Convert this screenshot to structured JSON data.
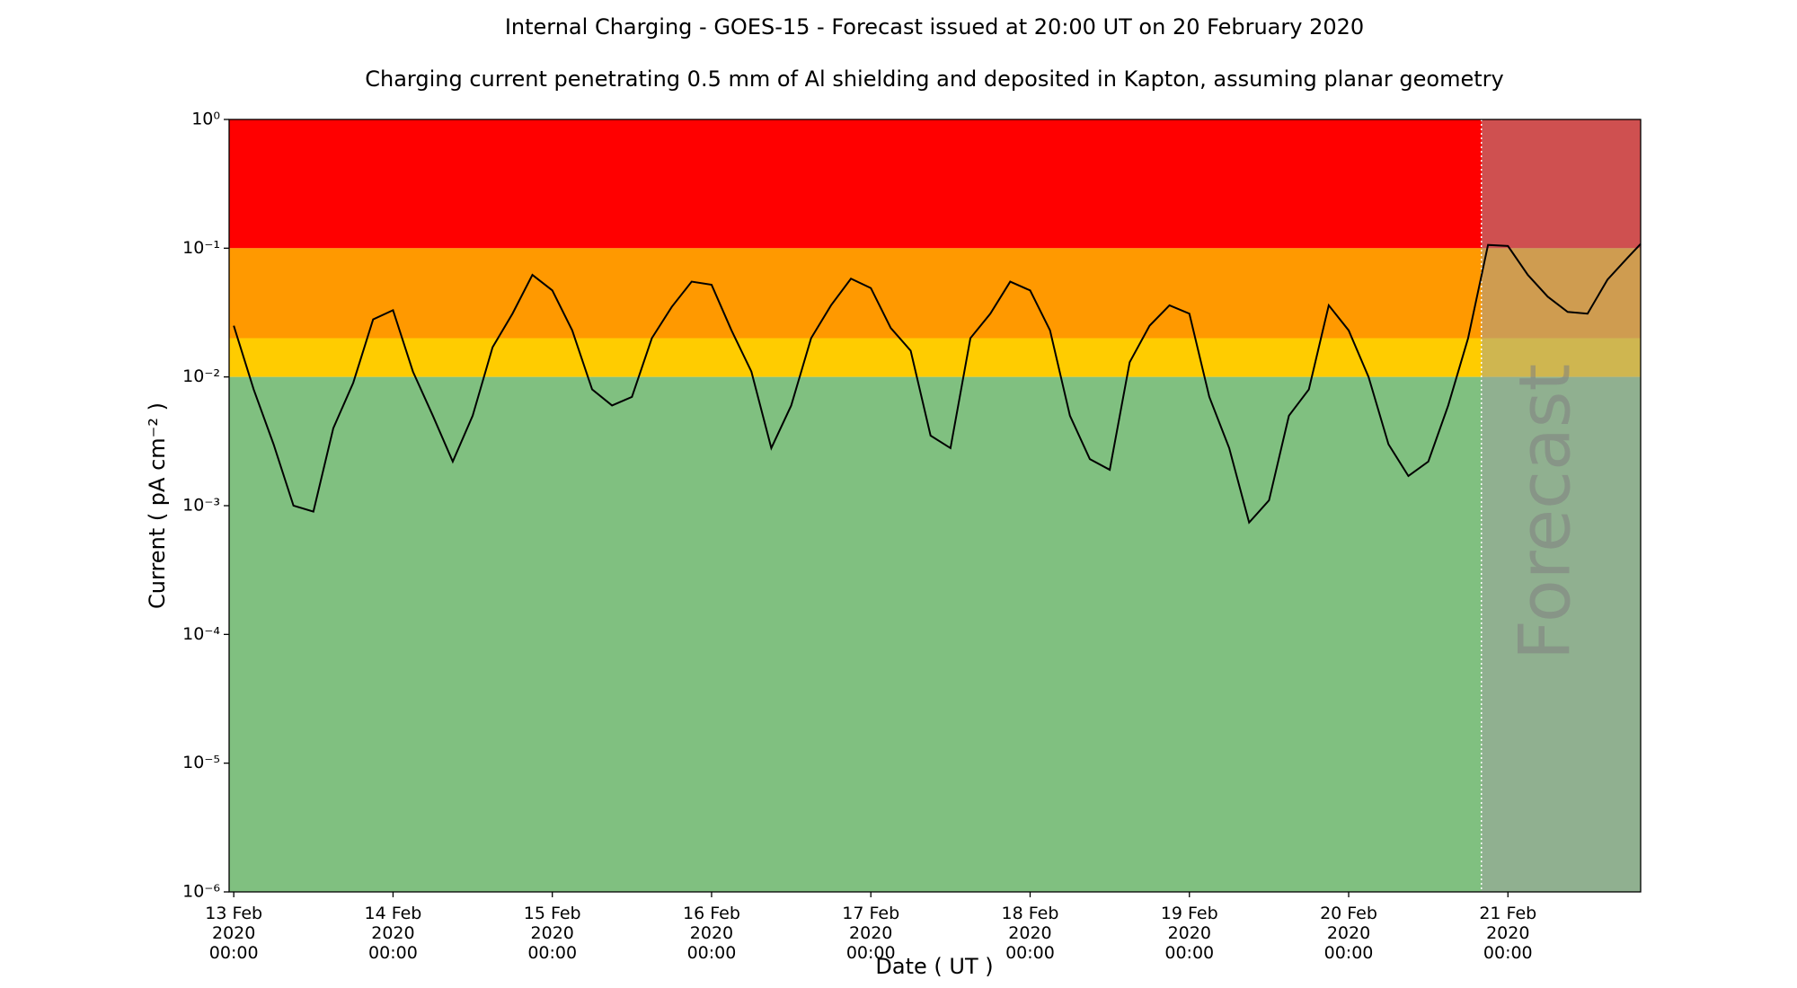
{
  "chart_data": {
    "type": "line",
    "title": "Internal Charging - GOES-15 - Forecast issued at 20:00 UT on 20 February 2020",
    "subtitle": "Charging current penetrating 0.5 mm of Al shielding and deposited in Kapton, assuming planar geometry",
    "xlabel": "Date ( UT )",
    "ylabel": "Current ( pA cm⁻² )",
    "yscale": "log",
    "ylim": [
      1e-06,
      1
    ],
    "yticks": [
      {
        "value": 1e-06,
        "label": "10⁻⁶"
      },
      {
        "value": 1e-05,
        "label": "10⁻⁵"
      },
      {
        "value": 0.0001,
        "label": "10⁻⁴"
      },
      {
        "value": 0.001,
        "label": "10⁻³"
      },
      {
        "value": 0.01,
        "label": "10⁻²"
      },
      {
        "value": 0.1,
        "label": "10⁻¹"
      },
      {
        "value": 1,
        "label": "10⁰"
      }
    ],
    "xlim": [
      "2020-02-12 23:18",
      "2020-02-21 20:00"
    ],
    "xticks": [
      {
        "value": "2020-02-13 00:00",
        "label": [
          "13 Feb",
          "2020",
          "00:00"
        ]
      },
      {
        "value": "2020-02-14 00:00",
        "label": [
          "14 Feb",
          "2020",
          "00:00"
        ]
      },
      {
        "value": "2020-02-15 00:00",
        "label": [
          "15 Feb",
          "2020",
          "00:00"
        ]
      },
      {
        "value": "2020-02-16 00:00",
        "label": [
          "16 Feb",
          "2020",
          "00:00"
        ]
      },
      {
        "value": "2020-02-17 00:00",
        "label": [
          "17 Feb",
          "2020",
          "00:00"
        ]
      },
      {
        "value": "2020-02-18 00:00",
        "label": [
          "18 Feb",
          "2020",
          "00:00"
        ]
      },
      {
        "value": "2020-02-19 00:00",
        "label": [
          "19 Feb",
          "2020",
          "00:00"
        ]
      },
      {
        "value": "2020-02-20 00:00",
        "label": [
          "20 Feb",
          "2020",
          "00:00"
        ]
      },
      {
        "value": "2020-02-21 00:00",
        "label": [
          "21 Feb",
          "2020",
          "00:00"
        ]
      }
    ],
    "bands": [
      {
        "from": 0.1,
        "to": 1,
        "color": "#ff0000"
      },
      {
        "from": 0.02,
        "to": 0.1,
        "color": "#ff9900"
      },
      {
        "from": 0.01,
        "to": 0.02,
        "color": "#ffcc00"
      },
      {
        "from": 1e-06,
        "to": 0.01,
        "color": "#80c080"
      }
    ],
    "forecast_start": "2020-02-20 20:00",
    "forecast_label": "Forecast",
    "forecast_shade": "#a0a0a0",
    "x": [
      "2020-02-13 00:00",
      "2020-02-13 03:00",
      "2020-02-13 06:00",
      "2020-02-13 09:00",
      "2020-02-13 12:00",
      "2020-02-13 15:00",
      "2020-02-13 18:00",
      "2020-02-13 21:00",
      "2020-02-14 00:00",
      "2020-02-14 03:00",
      "2020-02-14 06:00",
      "2020-02-14 09:00",
      "2020-02-14 12:00",
      "2020-02-14 15:00",
      "2020-02-14 18:00",
      "2020-02-14 21:00",
      "2020-02-15 00:00",
      "2020-02-15 03:00",
      "2020-02-15 06:00",
      "2020-02-15 09:00",
      "2020-02-15 12:00",
      "2020-02-15 15:00",
      "2020-02-15 18:00",
      "2020-02-15 21:00",
      "2020-02-16 00:00",
      "2020-02-16 03:00",
      "2020-02-16 06:00",
      "2020-02-16 09:00",
      "2020-02-16 12:00",
      "2020-02-16 15:00",
      "2020-02-16 18:00",
      "2020-02-16 21:00",
      "2020-02-17 00:00",
      "2020-02-17 03:00",
      "2020-02-17 06:00",
      "2020-02-17 09:00",
      "2020-02-17 12:00",
      "2020-02-17 15:00",
      "2020-02-17 18:00",
      "2020-02-17 21:00",
      "2020-02-18 00:00",
      "2020-02-18 03:00",
      "2020-02-18 06:00",
      "2020-02-18 09:00",
      "2020-02-18 12:00",
      "2020-02-18 15:00",
      "2020-02-18 18:00",
      "2020-02-18 21:00",
      "2020-02-19 00:00",
      "2020-02-19 03:00",
      "2020-02-19 06:00",
      "2020-02-19 09:00",
      "2020-02-19 12:00",
      "2020-02-19 15:00",
      "2020-02-19 18:00",
      "2020-02-19 21:00",
      "2020-02-20 00:00",
      "2020-02-20 03:00",
      "2020-02-20 06:00",
      "2020-02-20 09:00",
      "2020-02-20 12:00",
      "2020-02-20 15:00",
      "2020-02-20 18:00",
      "2020-02-20 21:00",
      "2020-02-21 00:00",
      "2020-02-21 03:00",
      "2020-02-21 06:00",
      "2020-02-21 09:00",
      "2020-02-21 12:00",
      "2020-02-21 15:00",
      "2020-02-21 18:00",
      "2020-02-21 20:00"
    ],
    "series": [
      {
        "color": "#000000",
        "values": [
          0.025,
          0.008,
          0.003,
          0.001,
          0.0009,
          0.004,
          0.009,
          0.028,
          0.033,
          0.011,
          0.005,
          0.0022,
          0.005,
          0.017,
          0.031,
          0.062,
          0.047,
          0.023,
          0.008,
          0.006,
          0.007,
          0.02,
          0.035,
          0.055,
          0.052,
          0.023,
          0.011,
          0.0028,
          0.006,
          0.02,
          0.036,
          0.058,
          0.049,
          0.024,
          0.016,
          0.0035,
          0.0028,
          0.02,
          0.031,
          0.055,
          0.047,
          0.023,
          0.005,
          0.0023,
          0.0019,
          0.013,
          0.025,
          0.036,
          0.031,
          0.007,
          0.0028,
          0.00074,
          0.0011,
          0.005,
          0.008,
          0.036,
          0.023,
          0.01,
          0.003,
          0.0017,
          0.0022,
          0.006,
          0.02,
          0.106,
          0.104,
          0.062,
          0.042,
          0.032,
          0.031,
          0.057,
          0.084,
          0.108
        ]
      }
    ]
  }
}
